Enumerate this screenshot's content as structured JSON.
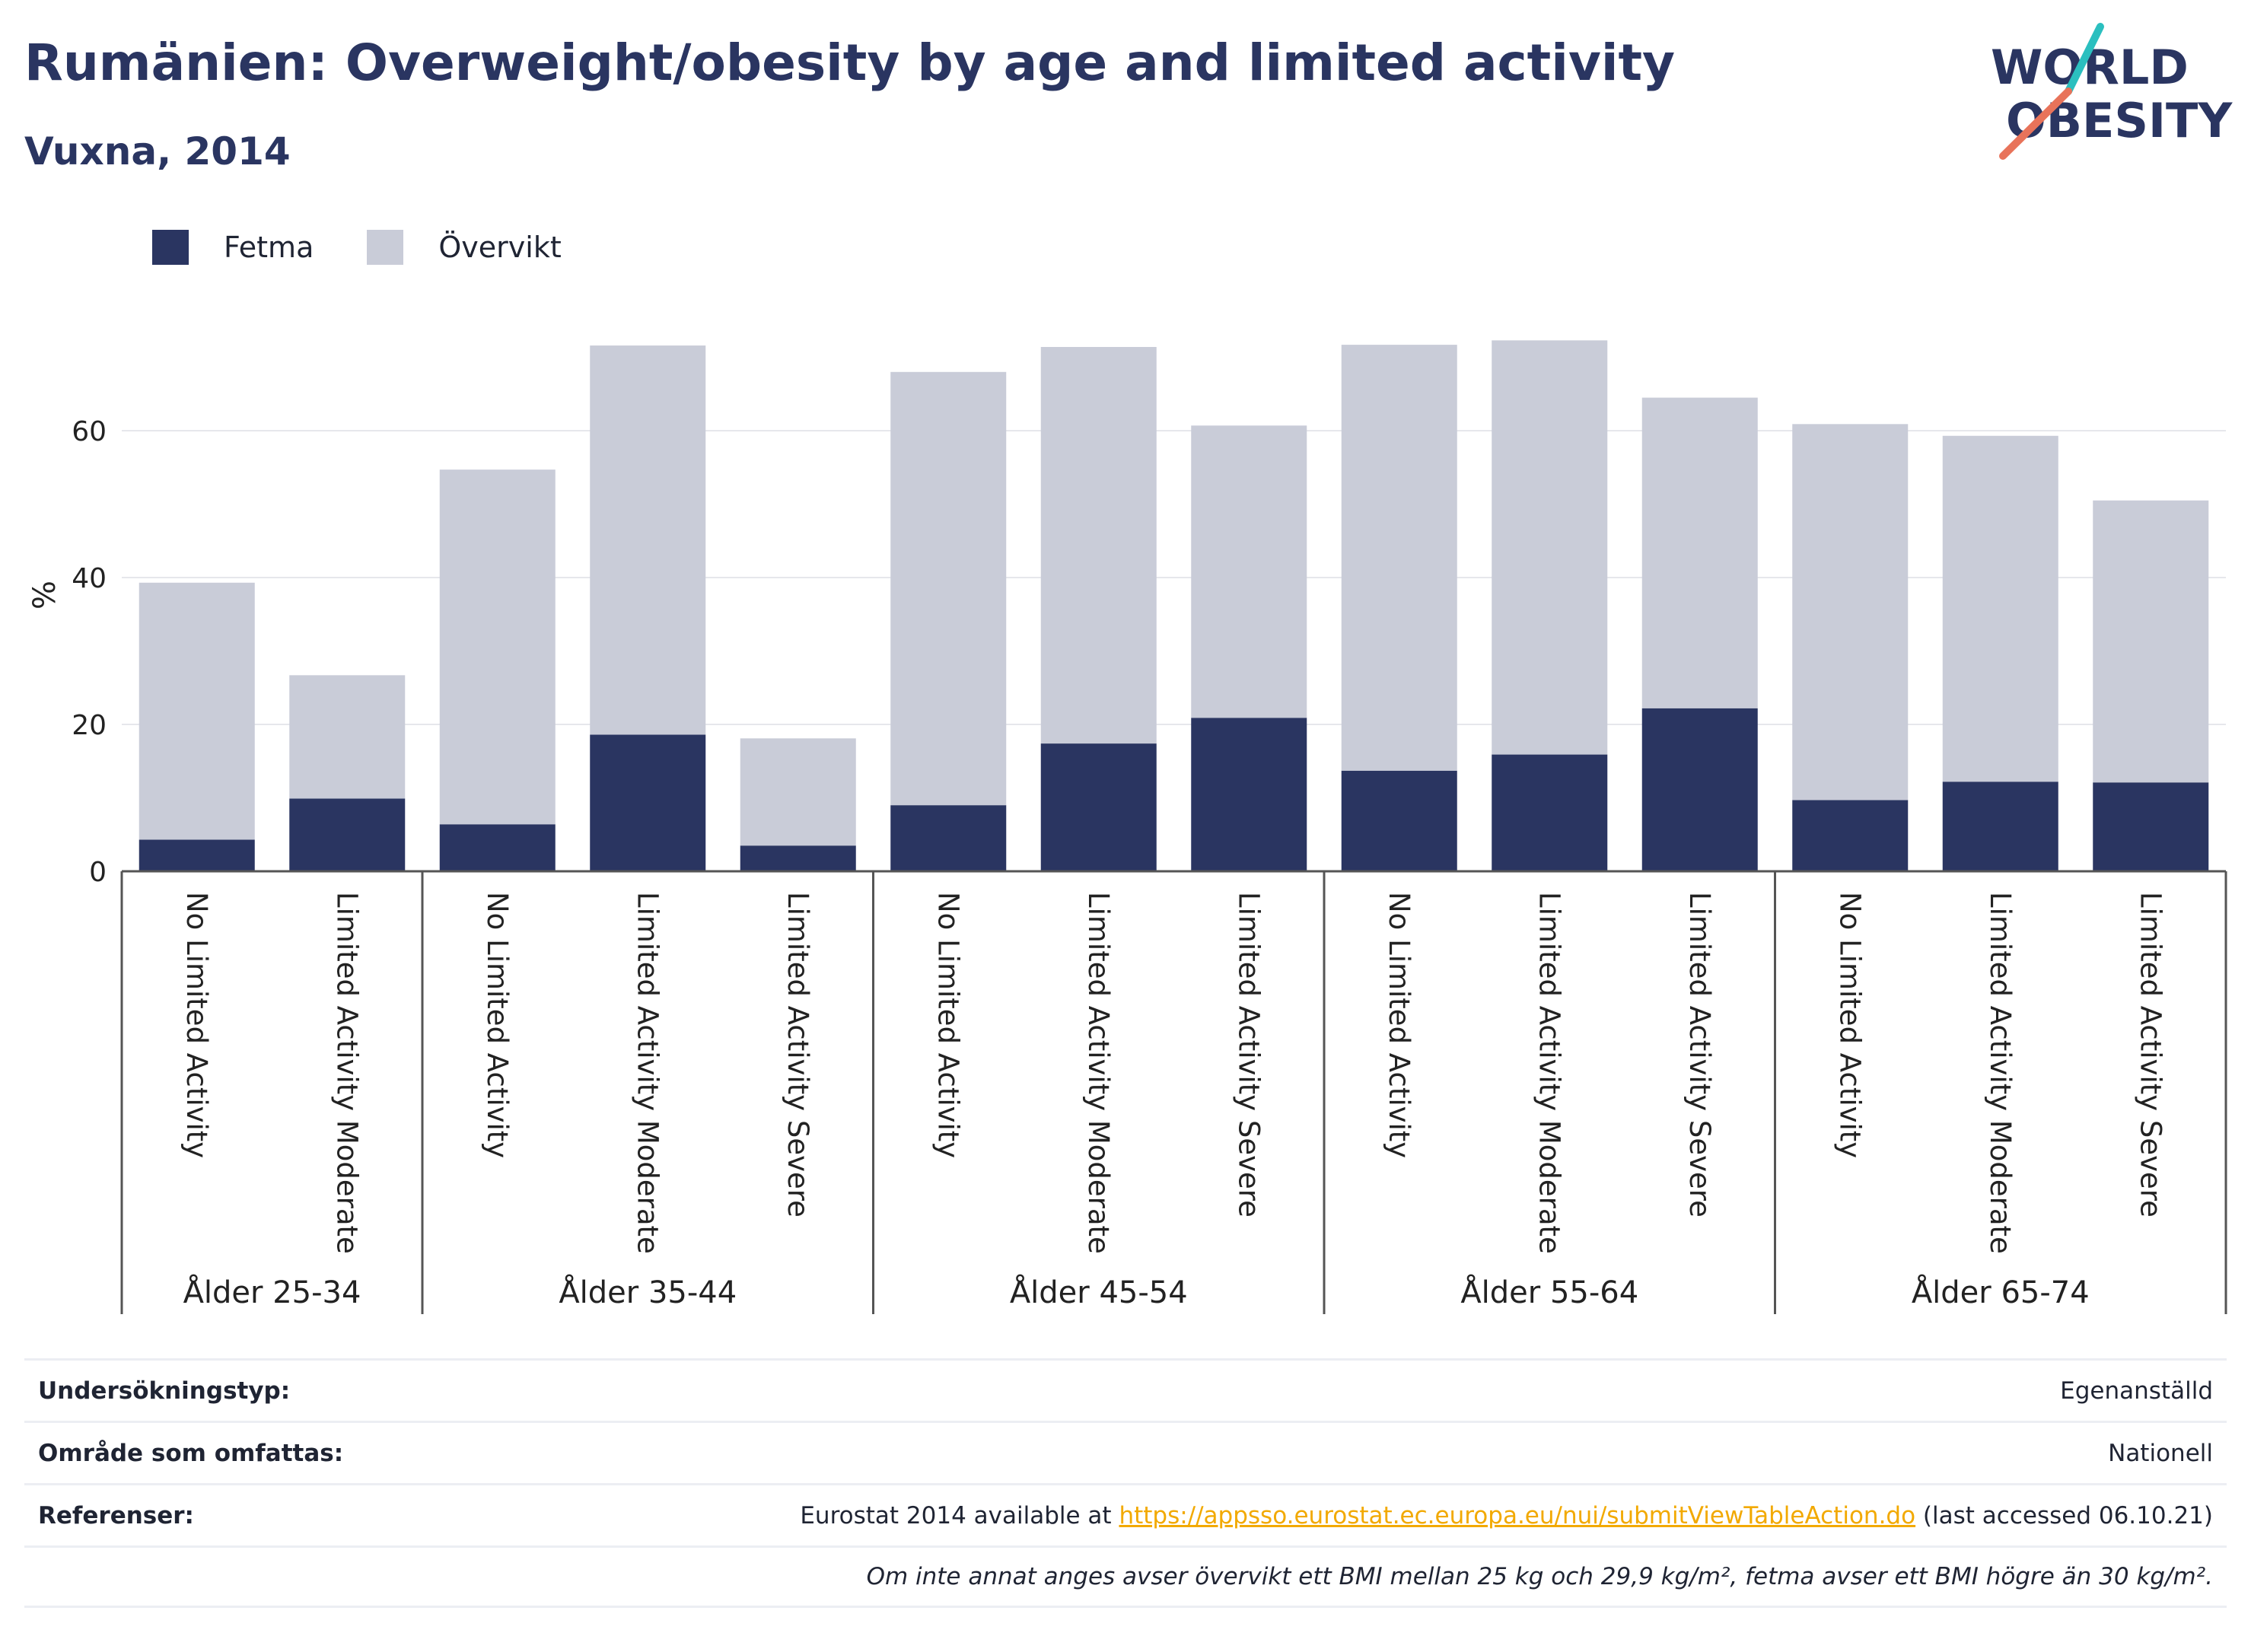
{
  "header": {
    "title": "Rumänien: Overweight/obesity by age and limited activity",
    "subtitle": "Vuxna, 2014"
  },
  "logo": {
    "line1": "WORLD",
    "line2": "OBESITY",
    "colors": {
      "text": "#2a3561",
      "slash_teal": "#2bbfbf",
      "slash_coral": "#e8735a"
    }
  },
  "colors": {
    "fetma": "#2a3561",
    "overvikt": "#c9ccd8",
    "axis": "#555555",
    "grid": "#e6e7ec"
  },
  "chart_data": {
    "type": "bar",
    "stacked": true,
    "ylabel": "%",
    "ylim": [
      0,
      73
    ],
    "yticks": [
      0,
      20,
      40,
      60
    ],
    "grid": true,
    "legend_position": "top-left",
    "groups": [
      {
        "label": "Ålder 25-34",
        "categories": [
          "No Limited Activity",
          "Limited Activity Moderate"
        ]
      },
      {
        "label": "Ålder 35-44",
        "categories": [
          "No Limited Activity",
          "Limited Activity Moderate",
          "Limited Activity Severe"
        ]
      },
      {
        "label": "Ålder 45-54",
        "categories": [
          "No Limited Activity",
          "Limited Activity Moderate",
          "Limited Activity Severe"
        ]
      },
      {
        "label": "Ålder 55-64",
        "categories": [
          "No Limited Activity",
          "Limited Activity Moderate",
          "Limited Activity Severe"
        ]
      },
      {
        "label": "Ålder 65-74",
        "categories": [
          "No Limited Activity",
          "Limited Activity Moderate",
          "Limited Activity Severe"
        ]
      }
    ],
    "series": [
      {
        "name": "Fetma",
        "values": [
          4.3,
          9.9,
          6.4,
          18.6,
          3.5,
          9.0,
          17.4,
          20.9,
          13.7,
          15.9,
          22.2,
          9.7,
          12.2,
          12.1
        ]
      },
      {
        "name": "Övervikt",
        "values": [
          35.0,
          16.8,
          48.3,
          53.0,
          14.6,
          59.0,
          54.0,
          39.8,
          58.0,
          56.4,
          42.3,
          51.2,
          47.1,
          38.4
        ]
      }
    ]
  },
  "footer": {
    "rows": [
      {
        "label": "Undersökningstyp:",
        "value": "Egenanställd"
      },
      {
        "label": "Område som omfattas:",
        "value": "Nationell"
      },
      {
        "label": "Referenser:",
        "value_pre": "Eurostat 2014 available at ",
        "link": "https://appsso.eurostat.ec.europa.eu/nui/submitViewTableAction.do",
        "value_post": " (last accessed 06.10.21)"
      }
    ],
    "note": "Om inte annat anges avser övervikt ett BMI mellan 25 kg och 29,9 kg/m², fetma avser ett BMI högre än 30 kg/m²."
  }
}
